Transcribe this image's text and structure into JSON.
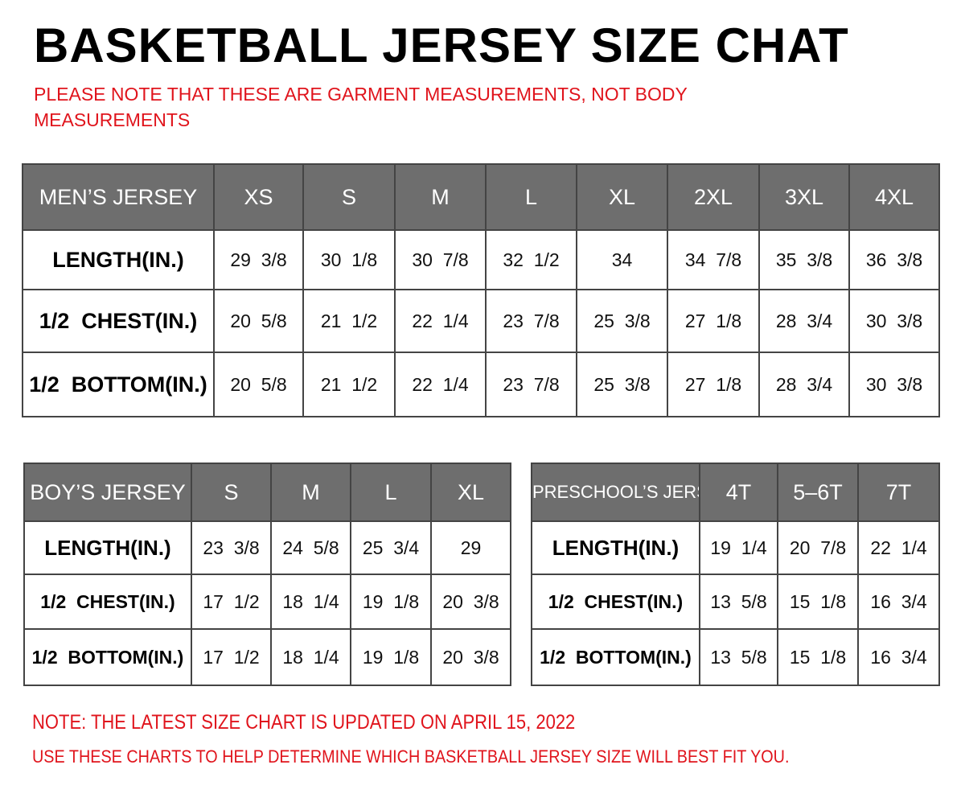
{
  "title": "BASKETBALL JERSEY SIZE CHAT",
  "subtitle_line1": "PLEASE NOTE THAT THESE ARE GARMENT MEASUREMENTS, NOT BODY",
  "subtitle_line2": "MEASUREMENTS",
  "colors": {
    "header_bg": "#6e6e6e",
    "note": "#e0141c"
  },
  "tables": {
    "men": {
      "header": "MEN’S JERSEY",
      "sizes": [
        "XS",
        "S",
        "M",
        "L",
        "XL",
        "2XL",
        "3XL",
        "4XL"
      ],
      "rows": [
        {
          "label": "LENGTH(IN.)",
          "values": [
            "29  3/8",
            "30  1/8",
            "30  7/8",
            "32  1/2",
            "34",
            "34  7/8",
            "35  3/8",
            "36  3/8"
          ]
        },
        {
          "label": "1/2  CHEST(IN.)",
          "values": [
            "20  5/8",
            "21  1/2",
            "22  1/4",
            "23  7/8",
            "25  3/8",
            "27  1/8",
            "28  3/4",
            "30  3/8"
          ]
        },
        {
          "label": "1/2  BOTTOM(IN.)",
          "values": [
            "20  5/8",
            "21  1/2",
            "22  1/4",
            "23  7/8",
            "25  3/8",
            "27  1/8",
            "28  3/4",
            "30  3/8"
          ]
        }
      ]
    },
    "boy": {
      "header": "BOY’S JERSEY",
      "sizes": [
        "S",
        "M",
        "L",
        "XL"
      ],
      "rows": [
        {
          "label": "LENGTH(IN.)",
          "values": [
            "23  3/8",
            "24  5/8",
            "25  3/4",
            "29"
          ]
        },
        {
          "label": "1/2  CHEST(IN.)",
          "values": [
            "17  1/2",
            "18  1/4",
            "19  1/8",
            "20  3/8"
          ]
        },
        {
          "label": "1/2  BOTTOM(IN.)",
          "values": [
            "17  1/2",
            "18  1/4",
            "19  1/8",
            "20  3/8"
          ]
        }
      ]
    },
    "preschool": {
      "header": "PRESCHOOL’S JERSEY",
      "sizes": [
        "4T",
        "5–6T",
        "7T"
      ],
      "rows": [
        {
          "label": "LENGTH(IN.)",
          "values": [
            "19  1/4",
            "20  7/8",
            "22  1/4"
          ]
        },
        {
          "label": "1/2  CHEST(IN.)",
          "values": [
            "13  5/8",
            "15  1/8",
            "16  3/4"
          ]
        },
        {
          "label": "1/2  BOTTOM(IN.)",
          "values": [
            "13  5/8",
            "15  1/8",
            "16  3/4"
          ]
        }
      ]
    }
  },
  "footer_note1": "NOTE: THE LATEST SIZE CHART IS UPDATED ON APRIL 15, 2022",
  "footer_note2": "USE THESE CHARTS TO HELP DETERMINE WHICH  BASKETBALL JERSEY  SIZE WILL BEST FIT YOU."
}
